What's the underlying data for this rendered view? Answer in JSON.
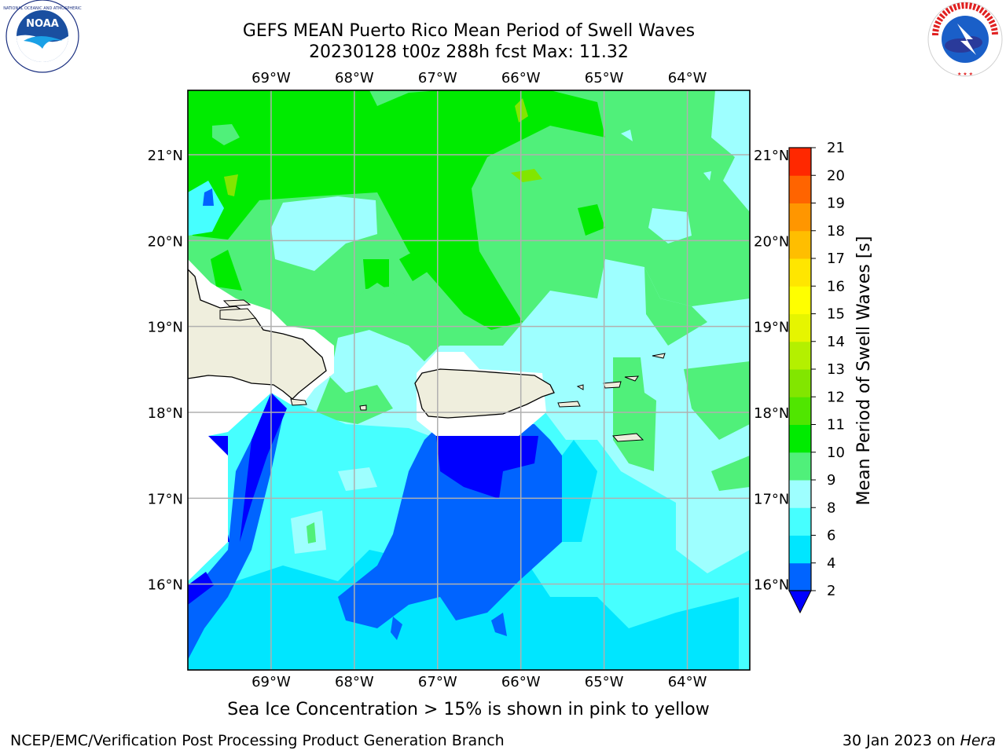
{
  "title": {
    "line1": "GEFS MEAN Puerto Rico Mean Period of Swell Waves",
    "line2": "20230128 t00z 288h fcst   Max: 11.32"
  },
  "map": {
    "lon_range": [
      -70.0,
      -63.25
    ],
    "lat_range": [
      15.0,
      21.75
    ],
    "lon_ticks": [
      {
        "value": -69,
        "label": "69°W"
      },
      {
        "value": -68,
        "label": "68°W"
      },
      {
        "value": -67,
        "label": "67°W"
      },
      {
        "value": -66,
        "label": "66°W"
      },
      {
        "value": -65,
        "label": "65°W"
      },
      {
        "value": -64,
        "label": "64°W"
      }
    ],
    "lat_ticks": [
      {
        "value": 21,
        "label": "21°N"
      },
      {
        "value": 20,
        "label": "20°N"
      },
      {
        "value": 19,
        "label": "19°N"
      },
      {
        "value": 18,
        "label": "18°N"
      },
      {
        "value": 17,
        "label": "17°N"
      },
      {
        "value": 16,
        "label": "16°N"
      }
    ],
    "grid": true,
    "land_color": "#efeedd",
    "gridline_color": "#b0b0b0"
  },
  "colorbar": {
    "label": "Mean Period of Swell Waves [s]",
    "levels": [
      2,
      4,
      6,
      8,
      9,
      10,
      11,
      12,
      13,
      14,
      15,
      16,
      17,
      18,
      19,
      20,
      21
    ],
    "colors": [
      "#0064ff",
      "#00e6ff",
      "#46ffff",
      "#9effff",
      "#50f07a",
      "#00eb00",
      "#50e600",
      "#82e600",
      "#b4f000",
      "#e6f500",
      "#ffff00",
      "#ffe600",
      "#ffbe00",
      "#ff9600",
      "#ff6400",
      "#ff2800"
    ],
    "under_color": "#0000ff",
    "extend": "min"
  },
  "subtitle": "Sea Ice Concentration > 15% is shown in pink to yellow",
  "footer": {
    "left": "NCEP/EMC/Verification Post Processing Product Generation Branch",
    "right_prefix": "30 Jan 2023 on ",
    "right_host": "Hera"
  },
  "logos": {
    "noaa_text": "NOAA",
    "nws_text": "NATIONAL WEATHER SERVICE"
  }
}
